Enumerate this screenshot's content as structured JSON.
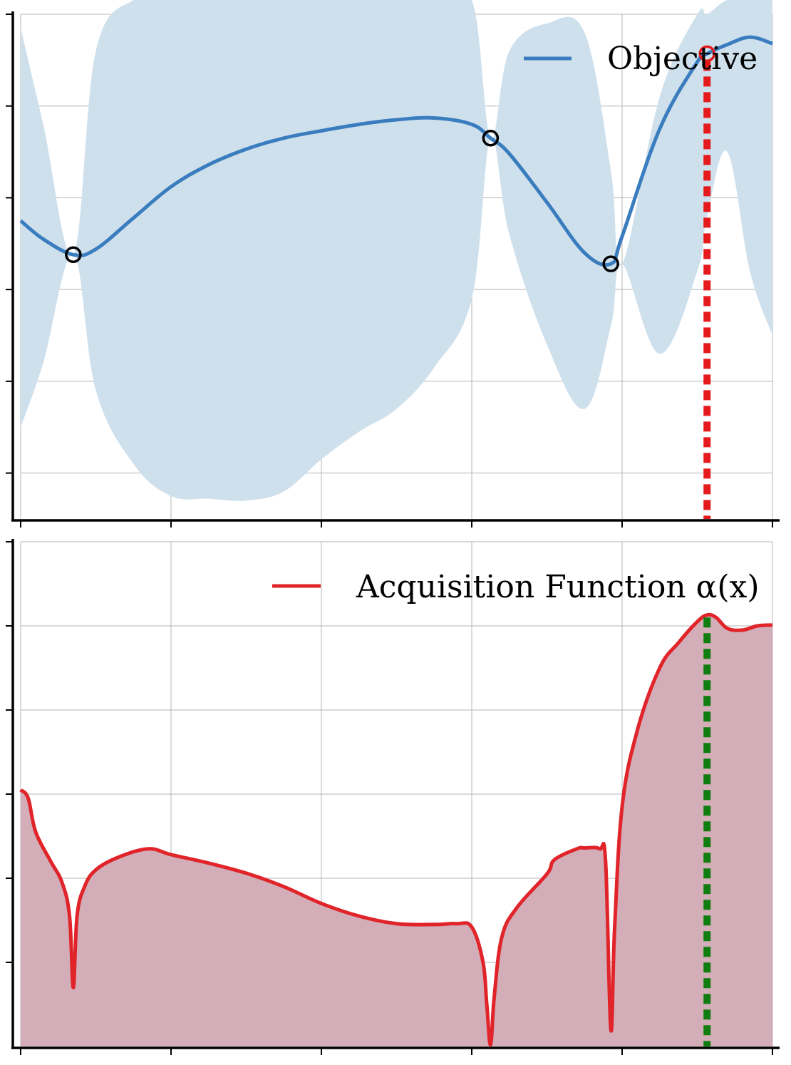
{
  "chart_data": [
    {
      "type": "line",
      "panel": "top",
      "legend": {
        "label": "Objective",
        "placement": "top-right"
      },
      "colors": {
        "line": "#3a7dbf",
        "band": "#cfe0ed",
        "observed": "#000000",
        "proposed": "#e41a1c",
        "guide": "#e41a1c"
      },
      "grid": true,
      "xlim": [
        0,
        1
      ],
      "ylim": [
        -2.5,
        3.0
      ],
      "x": [
        0.0,
        0.03,
        0.07,
        0.1,
        0.15,
        0.2,
        0.25,
        0.3,
        0.35,
        0.4,
        0.45,
        0.5,
        0.55,
        0.6,
        0.625,
        0.65,
        0.7,
        0.75,
        0.785,
        0.8,
        0.85,
        0.9,
        0.913,
        0.94,
        0.97,
        1.0
      ],
      "mean": [
        0.75,
        0.55,
        0.38,
        0.44,
        0.78,
        1.12,
        1.36,
        1.53,
        1.65,
        1.73,
        1.8,
        1.85,
        1.87,
        1.8,
        1.65,
        1.48,
        0.95,
        0.4,
        0.28,
        0.58,
        1.75,
        2.48,
        2.57,
        2.67,
        2.75,
        2.68
      ],
      "lower": [
        -1.5,
        -0.8,
        0.38,
        -1.1,
        -1.9,
        -2.25,
        -2.28,
        -2.3,
        -2.2,
        -1.85,
        -1.55,
        -1.3,
        -0.85,
        -0.1,
        1.65,
        0.6,
        -0.6,
        -1.3,
        -0.4,
        0.28,
        -0.7,
        0.2,
        0.8,
        1.5,
        0.2,
        -0.5
      ],
      "upper": [
        2.85,
        1.8,
        0.38,
        2.6,
        3.2,
        3.3,
        3.3,
        3.3,
        3.3,
        3.3,
        3.3,
        3.3,
        3.3,
        3.3,
        1.65,
        2.6,
        2.9,
        2.8,
        1.3,
        0.28,
        2.1,
        3.0,
        3.0,
        3.3,
        3.3,
        3.3
      ],
      "observations": {
        "x": [
          0.07,
          0.625,
          0.785
        ],
        "y": [
          0.38,
          1.65,
          0.28
        ]
      },
      "proposed": {
        "x": 0.913,
        "y": 2.57
      }
    },
    {
      "type": "area",
      "panel": "bottom",
      "legend": {
        "label": "Acquisition Function α(x)",
        "placement": "top-right"
      },
      "colors": {
        "line": "#e0242a",
        "fill": "#d3adb7",
        "guide": "#0f7d0f"
      },
      "grid": true,
      "xlim": [
        0,
        1
      ],
      "ylim": [
        0,
        6.0
      ],
      "x": [
        0.0,
        0.01,
        0.02,
        0.04,
        0.055,
        0.065,
        0.07,
        0.075,
        0.085,
        0.1,
        0.13,
        0.17,
        0.2,
        0.25,
        0.3,
        0.35,
        0.4,
        0.45,
        0.5,
        0.55,
        0.58,
        0.6,
        0.615,
        0.62,
        0.625,
        0.63,
        0.64,
        0.66,
        0.7,
        0.71,
        0.74,
        0.75,
        0.77,
        0.778,
        0.785,
        0.79,
        0.8,
        0.82,
        0.85,
        0.875,
        0.9,
        0.913,
        0.925,
        0.94,
        0.96,
        0.98,
        1.0
      ],
      "values": [
        3.05,
        2.95,
        2.55,
        2.2,
        1.95,
        1.55,
        0.7,
        1.55,
        1.9,
        2.1,
        2.25,
        2.35,
        2.28,
        2.18,
        2.06,
        1.9,
        1.7,
        1.55,
        1.46,
        1.45,
        1.46,
        1.42,
        1.0,
        0.5,
        0.02,
        0.6,
        1.3,
        1.65,
        2.05,
        2.22,
        2.35,
        2.36,
        2.35,
        2.2,
        0.2,
        1.4,
        2.85,
        3.75,
        4.5,
        4.8,
        5.05,
        5.13,
        5.1,
        4.97,
        4.95,
        5.0,
        5.01
      ],
      "proposed": {
        "x": 0.913
      }
    }
  ]
}
